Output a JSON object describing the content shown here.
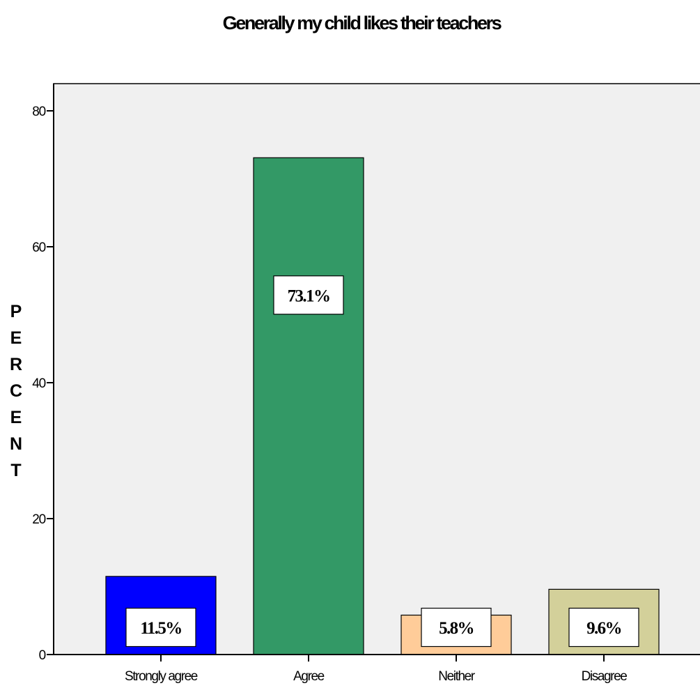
{
  "chart_data": {
    "type": "bar",
    "title": "Generally my child likes their teachers",
    "xlabel": "",
    "ylabel": "PERCENT",
    "categories": [
      "Strongly agree",
      "Agree",
      "Neither",
      "Disagree"
    ],
    "values": [
      11.5,
      73.1,
      5.8,
      9.6
    ],
    "data_labels": [
      "11.5%",
      "73.1%",
      "5.8%",
      "9.6%"
    ],
    "colors": [
      "#0000ff",
      "#339966",
      "#ffcc99",
      "#d3d09a"
    ],
    "ylim": [
      0,
      84
    ],
    "yticks": [
      0,
      20,
      40,
      60,
      80
    ],
    "grid": false,
    "plot_background": "#f0f0f0"
  }
}
